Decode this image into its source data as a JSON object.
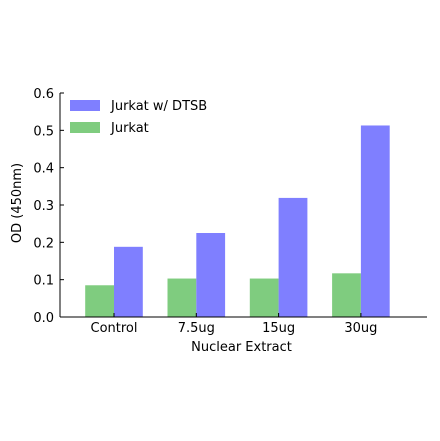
{
  "chart_data": {
    "type": "bar",
    "categories": [
      "Control",
      "7.5ug",
      "15ug",
      "30ug"
    ],
    "series": [
      {
        "name": "Jurkat",
        "values": [
          0.085,
          0.103,
          0.103,
          0.117
        ],
        "color": "#7fcc7f"
      },
      {
        "name": "Jurkat w/ DTSB",
        "values": [
          0.188,
          0.225,
          0.319,
          0.513
        ],
        "color": "#7f7fff"
      }
    ],
    "title": "",
    "xlabel": "Nuclear Extract",
    "ylabel": "OD (450nm)",
    "ylim": [
      0,
      0.6
    ],
    "yticks": [
      "0.0",
      "0.1",
      "0.2",
      "0.3",
      "0.4",
      "0.5",
      "0.6"
    ],
    "grid": false,
    "legend": {
      "position": "top-left",
      "order": [
        "Jurkat w/ DTSB",
        "Jurkat"
      ]
    }
  }
}
